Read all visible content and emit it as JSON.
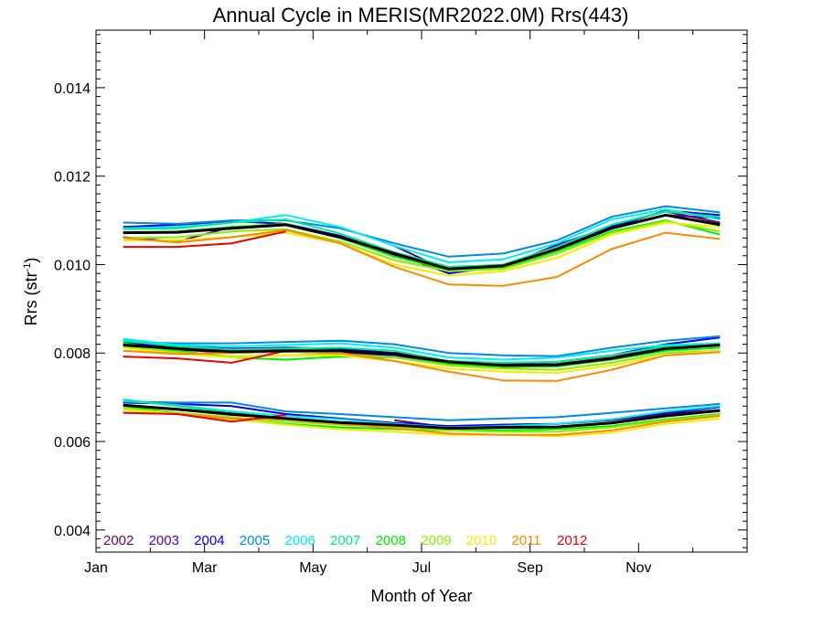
{
  "chart_data": {
    "type": "line",
    "title": "Annual Cycle in MERIS(MR2022.0M) Rrs(443)",
    "xlabel": "Month of Year",
    "ylabel": "Rrs (str",
    "ylabel_sup": "-1",
    "ylabel_close": ")",
    "xlim": [
      0,
      12
    ],
    "ylim": [
      0.0035,
      0.0153
    ],
    "x_ticks": [
      {
        "value": 0,
        "label": "Jan"
      },
      {
        "value": 2,
        "label": "Mar"
      },
      {
        "value": 4,
        "label": "May"
      },
      {
        "value": 6,
        "label": "Jul"
      },
      {
        "value": 8,
        "label": "Sep"
      },
      {
        "value": 10,
        "label": "Nov"
      }
    ],
    "y_ticks": [
      {
        "value": 0.004,
        "label": "0.004"
      },
      {
        "value": 0.006,
        "label": "0.006"
      },
      {
        "value": 0.008,
        "label": "0.008"
      },
      {
        "value": 0.01,
        "label": "0.010"
      },
      {
        "value": 0.012,
        "label": "0.012"
      },
      {
        "value": 0.014,
        "label": "0.014"
      }
    ],
    "grid": false,
    "legend_position": "bottom-left",
    "x": [
      0.5,
      1.5,
      2.5,
      3.5,
      4.5,
      5.5,
      6.5,
      7.5,
      8.5,
      9.5,
      10.5,
      11.5
    ],
    "series": [
      {
        "name": "2002",
        "color": "#660066",
        "groups": [
          [
            null,
            null,
            null,
            null,
            null,
            0.01042,
            0.00985,
            0.00997,
            0.01042,
            0.01088,
            0.0112,
            0.01095
          ],
          [
            null,
            null,
            null,
            null,
            null,
            0.00803,
            0.00778,
            0.00772,
            0.00775,
            0.0079,
            0.00815,
            0.00822
          ],
          [
            null,
            null,
            null,
            null,
            null,
            0.00648,
            0.00632,
            0.00638,
            0.0064,
            0.00648,
            0.00662,
            0.00672
          ]
        ]
      },
      {
        "name": "2003",
        "color": "#5500bb",
        "groups": [
          [
            0.01062,
            0.01052,
            0.01085,
            0.0109,
            0.0106,
            0.01022,
            0.00985,
            0.00995,
            0.01045,
            0.01085,
            0.01112,
            0.01105
          ],
          [
            0.00818,
            0.00808,
            0.008,
            0.00803,
            0.008,
            0.00795,
            0.00775,
            0.00772,
            0.00772,
            0.00787,
            0.00812,
            0.00818
          ],
          [
            0.00682,
            0.00672,
            0.0066,
            0.00652,
            0.00642,
            0.00635,
            0.00628,
            0.00632,
            0.00633,
            0.00642,
            0.00658,
            0.0067
          ]
        ]
      },
      {
        "name": "2004",
        "color": "#0000ee",
        "groups": [
          [
            0.01085,
            0.0109,
            0.01098,
            0.01092,
            0.01065,
            0.01025,
            0.0098,
            0.00997,
            0.0104,
            0.01085,
            0.01122,
            0.01112
          ],
          [
            0.00822,
            0.00815,
            0.0081,
            0.00812,
            0.0081,
            0.008,
            0.00782,
            0.00775,
            0.0078,
            0.00795,
            0.0082,
            0.00835
          ],
          [
            0.00688,
            0.00685,
            0.0068,
            0.00662,
            0.00652,
            0.00642,
            0.00635,
            0.00638,
            0.0064,
            0.0065,
            0.00665,
            0.00678
          ]
        ]
      },
      {
        "name": "2005",
        "color": "#0088ee",
        "groups": [
          [
            0.01095,
            0.01092,
            0.011,
            0.011,
            0.01082,
            0.01048,
            0.01018,
            0.01025,
            0.01055,
            0.01108,
            0.01132,
            0.01118
          ],
          [
            0.00825,
            0.00822,
            0.00822,
            0.00825,
            0.00828,
            0.0082,
            0.008,
            0.00795,
            0.00793,
            0.00812,
            0.00828,
            0.00838
          ],
          [
            0.0069,
            0.00688,
            0.00688,
            0.00668,
            0.00662,
            0.00655,
            0.00648,
            0.00652,
            0.00655,
            0.00665,
            0.00675,
            0.00685
          ]
        ]
      },
      {
        "name": "2006",
        "color": "#00eeee",
        "groups": [
          [
            0.01082,
            0.01085,
            0.01095,
            0.01112,
            0.01085,
            0.01042,
            0.01005,
            0.01012,
            0.01048,
            0.01102,
            0.01125,
            0.01102
          ],
          [
            0.00832,
            0.00818,
            0.00815,
            0.00818,
            0.00822,
            0.00812,
            0.0079,
            0.00785,
            0.0079,
            0.00805,
            0.00818,
            0.00822
          ],
          [
            0.00692,
            0.00682,
            0.00668,
            0.00658,
            0.0065,
            0.0064,
            0.00632,
            0.00635,
            0.0064,
            0.0065,
            0.00668,
            0.0068
          ]
        ]
      },
      {
        "name": "2007",
        "color": "#00ee88",
        "groups": [
          [
            0.0108,
            0.01082,
            0.01095,
            0.01102,
            0.0107,
            0.01028,
            0.00995,
            0.01,
            0.0104,
            0.0109,
            0.0112,
            0.01108
          ],
          [
            0.00828,
            0.00815,
            0.00808,
            0.0081,
            0.00812,
            0.00805,
            0.00782,
            0.00778,
            0.0078,
            0.00795,
            0.00815,
            0.00818
          ],
          [
            0.00695,
            0.0068,
            0.00665,
            0.00652,
            0.0064,
            0.00635,
            0.00628,
            0.0063,
            0.00632,
            0.00642,
            0.00658,
            0.00672
          ]
        ]
      },
      {
        "name": "2008",
        "color": "#00ee00",
        "groups": [
          [
            0.01072,
            0.01075,
            0.01085,
            0.01092,
            0.0106,
            0.01018,
            0.00988,
            0.00992,
            0.0103,
            0.01075,
            0.011,
            0.01068
          ],
          [
            0.00822,
            0.00805,
            0.0079,
            0.00785,
            0.00792,
            0.0079,
            0.00775,
            0.00768,
            0.0077,
            0.00785,
            0.00805,
            0.00812
          ],
          [
            0.0068,
            0.00665,
            0.0065,
            0.0064,
            0.00632,
            0.00628,
            0.00625,
            0.00625,
            0.00628,
            0.00635,
            0.0065,
            0.00662
          ]
        ]
      },
      {
        "name": "2009",
        "color": "#88ee00",
        "groups": [
          [
            0.0106,
            0.01062,
            0.01075,
            0.0108,
            0.01052,
            0.0101,
            0.00985,
            0.0099,
            0.01025,
            0.01072,
            0.01098,
            0.01075
          ],
          [
            0.00815,
            0.00802,
            0.00792,
            0.00795,
            0.00798,
            0.0079,
            0.00772,
            0.00765,
            0.00762,
            0.00778,
            0.008,
            0.00805
          ],
          [
            0.00675,
            0.00665,
            0.00655,
            0.00645,
            0.00638,
            0.00632,
            0.00625,
            0.00622,
            0.00622,
            0.00632,
            0.00648,
            0.0066
          ]
        ]
      },
      {
        "name": "2010",
        "color": "#eeee00",
        "groups": [
          [
            0.01055,
            0.01055,
            0.01062,
            0.01072,
            0.01048,
            0.01,
            0.00975,
            0.00985,
            0.01015,
            0.01068,
            0.01095,
            0.01085
          ],
          [
            0.00812,
            0.00798,
            0.0079,
            0.00795,
            0.00795,
            0.00782,
            0.00765,
            0.00758,
            0.00755,
            0.00772,
            0.00795,
            0.00805
          ],
          [
            0.00672,
            0.00662,
            0.0065,
            0.00638,
            0.00628,
            0.00622,
            0.00615,
            0.00615,
            0.00612,
            0.0062,
            0.0064,
            0.00652
          ]
        ]
      },
      {
        "name": "2011",
        "color": "#ff8800",
        "groups": [
          [
            0.0106,
            0.0105,
            0.01062,
            0.01078,
            0.01048,
            0.00995,
            0.00955,
            0.00952,
            0.00972,
            0.01035,
            0.01072,
            0.01058
          ],
          [
            0.00805,
            0.00798,
            0.008,
            0.00803,
            0.008,
            0.00782,
            0.00758,
            0.00738,
            0.00737,
            0.00762,
            0.00795,
            0.00802
          ],
          [
            0.00665,
            0.00662,
            0.00652,
            0.0065,
            0.0064,
            0.0063,
            0.00618,
            0.00615,
            0.00615,
            0.00625,
            0.00645,
            0.00658
          ]
        ]
      },
      {
        "name": "2012",
        "color": "#ee0000",
        "groups": [
          [
            0.0104,
            0.0104,
            0.01048,
            0.01075,
            null,
            null,
            null,
            null,
            null,
            null,
            null,
            null
          ],
          [
            0.00792,
            0.00788,
            0.00778,
            0.00805,
            null,
            null,
            null,
            null,
            null,
            null,
            null,
            null
          ],
          [
            0.00665,
            0.00662,
            0.00645,
            0.0066,
            null,
            null,
            null,
            null,
            null,
            null,
            null,
            null
          ]
        ]
      }
    ],
    "mean_series": {
      "color": "#000000",
      "groups": [
        [
          0.01072,
          0.01073,
          0.01082,
          0.0109,
          0.01062,
          0.01025,
          0.0099,
          0.00997,
          0.01035,
          0.01082,
          0.01112,
          0.0109
        ],
        [
          0.00818,
          0.0081,
          0.00803,
          0.00805,
          0.00805,
          0.00798,
          0.0078,
          0.00772,
          0.00773,
          0.00788,
          0.0081,
          0.00818
        ],
        [
          0.00682,
          0.00673,
          0.00662,
          0.00652,
          0.00643,
          0.00637,
          0.0063,
          0.00632,
          0.00633,
          0.00642,
          0.00658,
          0.0067
        ]
      ]
    }
  }
}
